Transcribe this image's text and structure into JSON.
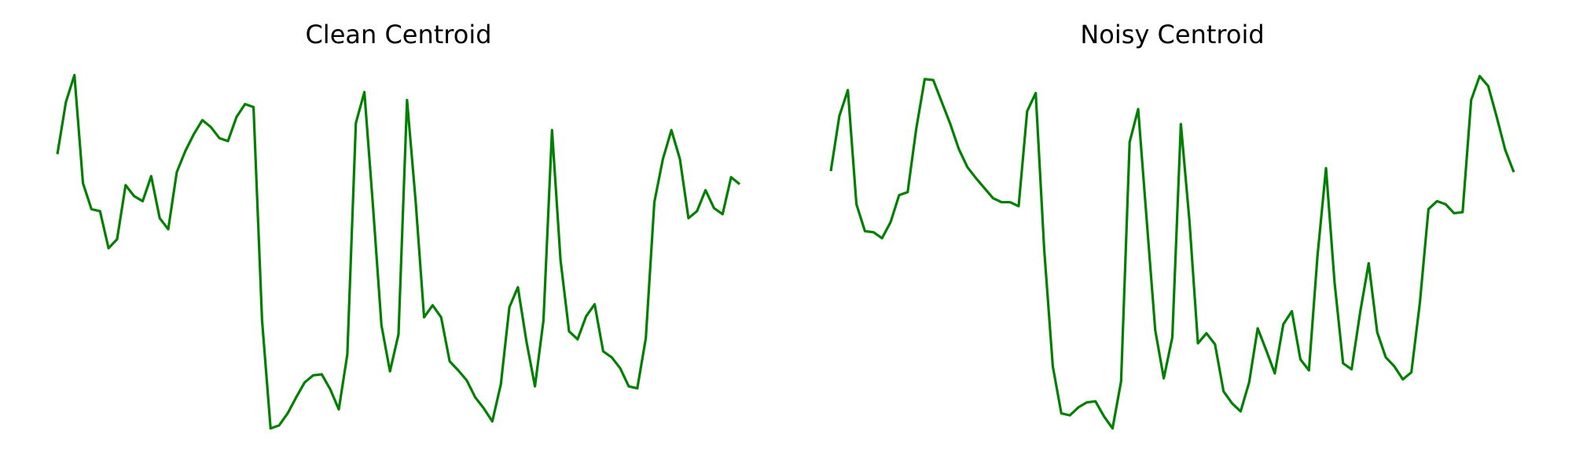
{
  "chart_data": [
    {
      "type": "line",
      "title": "Clean Centroid",
      "color": "#008000",
      "x": [
        0,
        1,
        2,
        3,
        4,
        5,
        6,
        7,
        8,
        9,
        10,
        11,
        12,
        13,
        14,
        15,
        16,
        17,
        18,
        19,
        20,
        21,
        22,
        23,
        24,
        25,
        26,
        27,
        28,
        29,
        30,
        31,
        32,
        33,
        34,
        35,
        36,
        37,
        38,
        39,
        40,
        41,
        42,
        43,
        44,
        45,
        46,
        47,
        48,
        49,
        50,
        51,
        52,
        53,
        54,
        55,
        56,
        57,
        58,
        59,
        60,
        61,
        62,
        63,
        64,
        65,
        66,
        67,
        68,
        69,
        70,
        71,
        72,
        73,
        74,
        75,
        76,
        77,
        78,
        79,
        80
      ],
      "values": [
        286,
        338,
        365,
        257,
        231,
        229,
        192,
        201,
        255,
        244,
        239,
        264,
        222,
        211,
        268,
        289,
        306,
        320,
        313,
        302,
        299,
        323,
        336,
        333,
        120,
        12,
        15,
        27,
        43,
        58,
        65,
        66,
        51,
        31,
        86,
        317,
        348,
        235,
        115,
        69,
        106,
        340,
        240,
        123,
        135,
        123,
        79,
        70,
        60,
        43,
        32,
        19,
        56,
        133,
        153,
        99,
        54,
        120,
        310,
        180,
        109,
        101,
        124,
        136,
        89,
        83,
        72,
        54,
        52,
        102,
        238,
        281,
        310,
        281,
        222,
        229,
        250,
        232,
        226,
        263,
        256
      ],
      "xlim": [
        0,
        80
      ],
      "ylim": [
        0,
        380
      ]
    },
    {
      "type": "line",
      "title": "Noisy Centroid",
      "color": "#008000",
      "x": [
        0,
        1,
        2,
        3,
        4,
        5,
        6,
        7,
        8,
        9,
        10,
        11,
        12,
        13,
        14,
        15,
        16,
        17,
        18,
        19,
        20,
        21,
        22,
        23,
        24,
        25,
        26,
        27,
        28,
        29,
        30,
        31,
        32,
        33,
        34,
        35,
        36,
        37,
        38,
        39,
        40,
        41,
        42,
        43,
        44,
        45,
        46,
        47,
        48,
        49,
        50,
        51,
        52,
        53,
        54,
        55,
        56,
        57,
        58,
        59,
        60,
        61,
        62,
        63,
        64,
        65,
        66,
        67,
        68,
        69,
        70,
        71,
        72,
        73,
        74,
        75,
        76,
        77,
        78,
        79,
        80
      ],
      "values": [
        269,
        324,
        350,
        236,
        209,
        208,
        202,
        218,
        245,
        248,
        311,
        361,
        360,
        338,
        316,
        291,
        273,
        262,
        252,
        242,
        238,
        238,
        234,
        329,
        347,
        190,
        74,
        27,
        25,
        33,
        38,
        39,
        24,
        12,
        59,
        298,
        331,
        220,
        110,
        62,
        103,
        316,
        220,
        97,
        107,
        96,
        49,
        37,
        29,
        58,
        112,
        90,
        67,
        116,
        129,
        81,
        70,
        184,
        272,
        158,
        77,
        71,
        128,
        177,
        108,
        83,
        74,
        61,
        68,
        138,
        231,
        239,
        236,
        227,
        228,
        340,
        364,
        354,
        323,
        290,
        268
      ],
      "xlim": [
        0,
        80
      ],
      "ylim": [
        0,
        380
      ]
    }
  ]
}
